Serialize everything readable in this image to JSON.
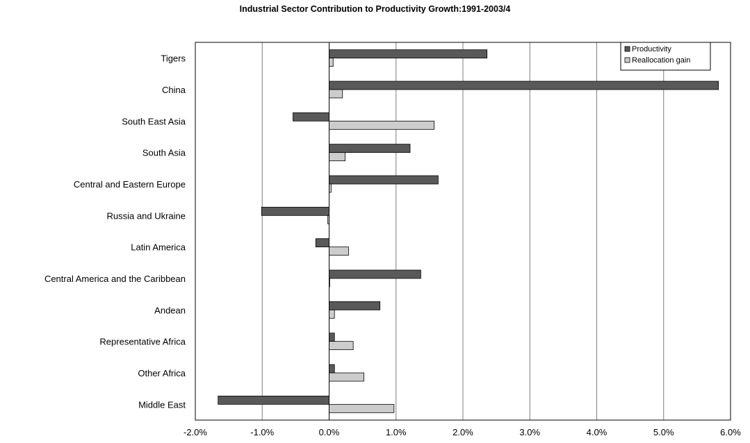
{
  "chart_data": {
    "type": "bar",
    "orientation": "horizontal",
    "title": "Industrial Sector Contribution to Productivity Growth:1991-2003/4",
    "xlabel": "",
    "ylabel": "",
    "xlim": [
      -0.02,
      0.06
    ],
    "x_ticks": [
      -0.02,
      -0.01,
      0.0,
      0.01,
      0.02,
      0.03,
      0.04,
      0.05,
      0.06
    ],
    "x_tick_labels": [
      "-2.0%",
      "-1.0%",
      "0.0%",
      "1.0%",
      "2.0%",
      "3.0%",
      "4.0%",
      "5.0%",
      "6.0%"
    ],
    "grid": "vertical",
    "legend_position": "top-right",
    "categories": [
      "Tigers",
      "China",
      "South East Asia",
      "South Asia",
      "Central and Eastern Europe",
      "Russia and Ukraine",
      "Latin America",
      "Central America and the Caribbean",
      "Andean",
      "Representative Africa",
      "Other Africa",
      "Middle East"
    ],
    "series": [
      {
        "name": "Productivity",
        "color": "#595959",
        "values": [
          0.0236,
          0.0582,
          -0.0054,
          0.0121,
          0.0163,
          -0.0101,
          -0.002,
          0.0137,
          0.0076,
          0.0008,
          0.0008,
          -0.0166
        ]
      },
      {
        "name": "Reallocation gain",
        "color": "#cccccc",
        "values": [
          0.0006,
          0.002,
          0.0157,
          0.0024,
          0.0003,
          -0.0002,
          0.0029,
          0.0,
          0.0008,
          0.0036,
          0.0052,
          0.0097
        ]
      }
    ]
  }
}
